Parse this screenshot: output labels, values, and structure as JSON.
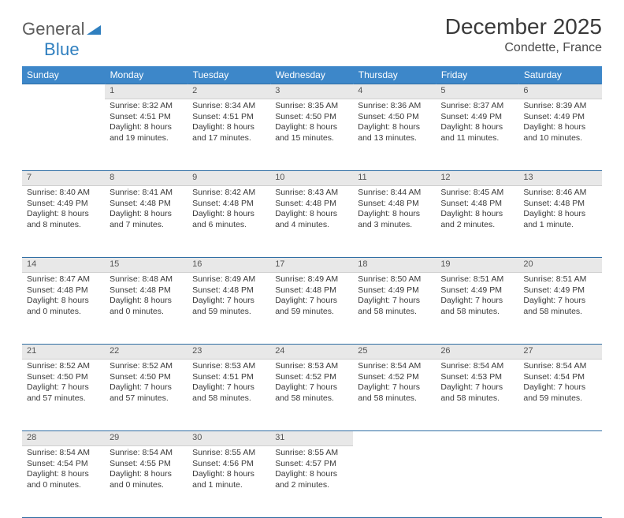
{
  "logo": {
    "word1": "General",
    "word2": "Blue"
  },
  "title": "December 2025",
  "location": "Condette, France",
  "colors": {
    "header_bg": "#3d87c9",
    "rule": "#2f6da3",
    "daynum_bg": "#e8e8e8",
    "text": "#3a3a3a",
    "logo_gray": "#5c5c5c",
    "logo_blue": "#2f7fbf"
  },
  "weekdays": [
    "Sunday",
    "Monday",
    "Tuesday",
    "Wednesday",
    "Thursday",
    "Friday",
    "Saturday"
  ],
  "weeks": [
    [
      null,
      {
        "n": "1",
        "sr": "8:32 AM",
        "ss": "4:51 PM",
        "dl": "8 hours and 19 minutes."
      },
      {
        "n": "2",
        "sr": "8:34 AM",
        "ss": "4:51 PM",
        "dl": "8 hours and 17 minutes."
      },
      {
        "n": "3",
        "sr": "8:35 AM",
        "ss": "4:50 PM",
        "dl": "8 hours and 15 minutes."
      },
      {
        "n": "4",
        "sr": "8:36 AM",
        "ss": "4:50 PM",
        "dl": "8 hours and 13 minutes."
      },
      {
        "n": "5",
        "sr": "8:37 AM",
        "ss": "4:49 PM",
        "dl": "8 hours and 11 minutes."
      },
      {
        "n": "6",
        "sr": "8:39 AM",
        "ss": "4:49 PM",
        "dl": "8 hours and 10 minutes."
      }
    ],
    [
      {
        "n": "7",
        "sr": "8:40 AM",
        "ss": "4:49 PM",
        "dl": "8 hours and 8 minutes."
      },
      {
        "n": "8",
        "sr": "8:41 AM",
        "ss": "4:48 PM",
        "dl": "8 hours and 7 minutes."
      },
      {
        "n": "9",
        "sr": "8:42 AM",
        "ss": "4:48 PM",
        "dl": "8 hours and 6 minutes."
      },
      {
        "n": "10",
        "sr": "8:43 AM",
        "ss": "4:48 PM",
        "dl": "8 hours and 4 minutes."
      },
      {
        "n": "11",
        "sr": "8:44 AM",
        "ss": "4:48 PM",
        "dl": "8 hours and 3 minutes."
      },
      {
        "n": "12",
        "sr": "8:45 AM",
        "ss": "4:48 PM",
        "dl": "8 hours and 2 minutes."
      },
      {
        "n": "13",
        "sr": "8:46 AM",
        "ss": "4:48 PM",
        "dl": "8 hours and 1 minute."
      }
    ],
    [
      {
        "n": "14",
        "sr": "8:47 AM",
        "ss": "4:48 PM",
        "dl": "8 hours and 0 minutes."
      },
      {
        "n": "15",
        "sr": "8:48 AM",
        "ss": "4:48 PM",
        "dl": "8 hours and 0 minutes."
      },
      {
        "n": "16",
        "sr": "8:49 AM",
        "ss": "4:48 PM",
        "dl": "7 hours and 59 minutes."
      },
      {
        "n": "17",
        "sr": "8:49 AM",
        "ss": "4:48 PM",
        "dl": "7 hours and 59 minutes."
      },
      {
        "n": "18",
        "sr": "8:50 AM",
        "ss": "4:49 PM",
        "dl": "7 hours and 58 minutes."
      },
      {
        "n": "19",
        "sr": "8:51 AM",
        "ss": "4:49 PM",
        "dl": "7 hours and 58 minutes."
      },
      {
        "n": "20",
        "sr": "8:51 AM",
        "ss": "4:49 PM",
        "dl": "7 hours and 58 minutes."
      }
    ],
    [
      {
        "n": "21",
        "sr": "8:52 AM",
        "ss": "4:50 PM",
        "dl": "7 hours and 57 minutes."
      },
      {
        "n": "22",
        "sr": "8:52 AM",
        "ss": "4:50 PM",
        "dl": "7 hours and 57 minutes."
      },
      {
        "n": "23",
        "sr": "8:53 AM",
        "ss": "4:51 PM",
        "dl": "7 hours and 58 minutes."
      },
      {
        "n": "24",
        "sr": "8:53 AM",
        "ss": "4:52 PM",
        "dl": "7 hours and 58 minutes."
      },
      {
        "n": "25",
        "sr": "8:54 AM",
        "ss": "4:52 PM",
        "dl": "7 hours and 58 minutes."
      },
      {
        "n": "26",
        "sr": "8:54 AM",
        "ss": "4:53 PM",
        "dl": "7 hours and 58 minutes."
      },
      {
        "n": "27",
        "sr": "8:54 AM",
        "ss": "4:54 PM",
        "dl": "7 hours and 59 minutes."
      }
    ],
    [
      {
        "n": "28",
        "sr": "8:54 AM",
        "ss": "4:54 PM",
        "dl": "8 hours and 0 minutes."
      },
      {
        "n": "29",
        "sr": "8:54 AM",
        "ss": "4:55 PM",
        "dl": "8 hours and 0 minutes."
      },
      {
        "n": "30",
        "sr": "8:55 AM",
        "ss": "4:56 PM",
        "dl": "8 hours and 1 minute."
      },
      {
        "n": "31",
        "sr": "8:55 AM",
        "ss": "4:57 PM",
        "dl": "8 hours and 2 minutes."
      },
      null,
      null,
      null
    ]
  ],
  "labels": {
    "sunrise": "Sunrise:",
    "sunset": "Sunset:",
    "daylight": "Daylight:"
  }
}
